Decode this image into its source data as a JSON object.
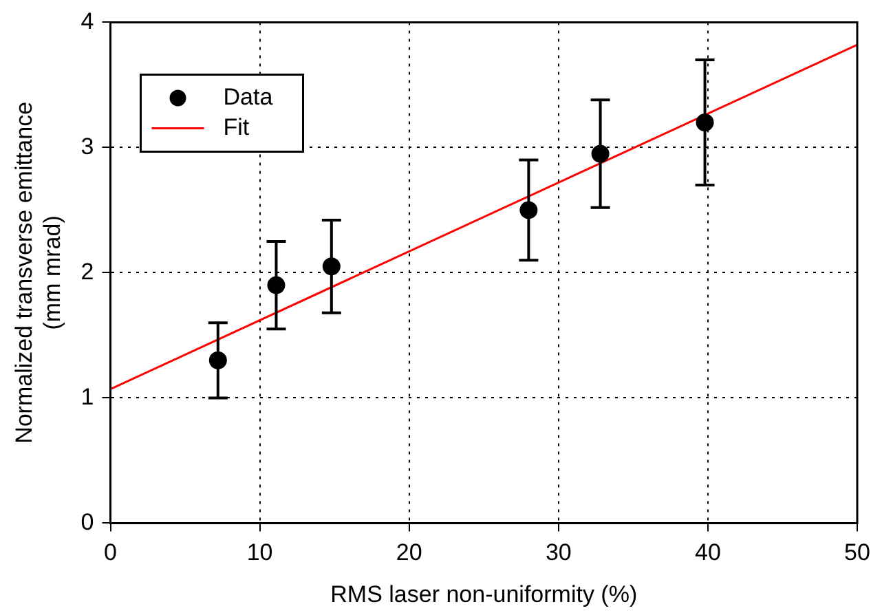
{
  "chart_data": {
    "type": "scatter",
    "xlabel": "RMS laser non-uniformity (%)",
    "ylabel": "Normalized transverse emittance\n(mm mrad)",
    "xlim": [
      0,
      50
    ],
    "xticks": [
      0,
      10,
      20,
      30,
      40,
      50
    ],
    "ylim": [
      0,
      4
    ],
    "yticks": [
      0,
      1,
      2,
      3,
      4
    ],
    "grid": true,
    "legend": "top left",
    "series": [
      {
        "name": "Data",
        "color": "#000000",
        "marker": "circle",
        "x": [
          7.2,
          11.1,
          14.8,
          28,
          32.8,
          39.8
        ],
        "values": [
          1.3,
          1.9,
          2.05,
          2.5,
          2.95,
          3.2
        ],
        "errors": [
          [
            1.0,
            1.6
          ],
          [
            1.55,
            2.25
          ],
          [
            1.68,
            2.42
          ],
          [
            2.1,
            2.9
          ],
          [
            2.52,
            3.38
          ],
          [
            2.7,
            3.7
          ]
        ]
      },
      {
        "name": "Fit",
        "type": "line",
        "color": "#ff0000",
        "marker": "none",
        "x": [
          0,
          50
        ],
        "values": [
          1.07,
          3.82
        ],
        "line_style": "solid"
      }
    ]
  }
}
